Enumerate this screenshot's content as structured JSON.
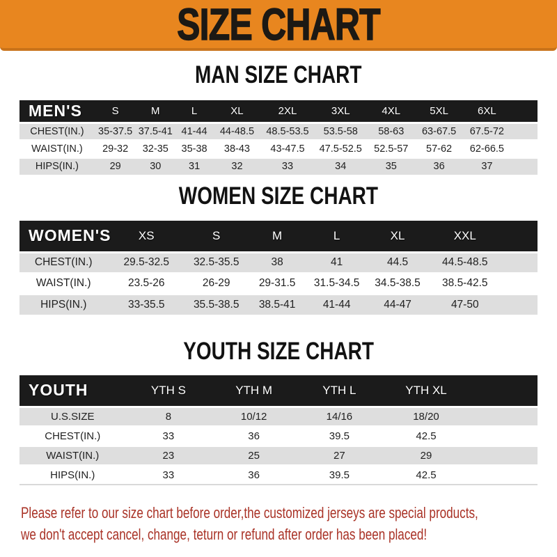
{
  "banner": {
    "title": "SIZE CHART"
  },
  "sections": [
    {
      "heading": "MAN SIZE CHART",
      "table": {
        "header_label": "MEN'S",
        "columns": [
          "S",
          "M",
          "L",
          "XL",
          "2XL",
          "3XL",
          "4XL",
          "5XL",
          "6XL"
        ],
        "rows": [
          {
            "label": "CHEST(IN.)",
            "values": [
              "35-37.5",
              "37.5-41",
              "41-44",
              "44-48.5",
              "48.5-53.5",
              "53.5-58",
              "58-63",
              "63-67.5",
              "67.5-72"
            ]
          },
          {
            "label": "WAIST(IN.)",
            "values": [
              "29-32",
              "32-35",
              "35-38",
              "38-43",
              "43-47.5",
              "47.5-52.5",
              "52.5-57",
              "57-62",
              "62-66.5"
            ]
          },
          {
            "label": "HIPS(IN.)",
            "values": [
              "29",
              "30",
              "31",
              "32",
              "33",
              "34",
              "35",
              "36",
              "37"
            ]
          }
        ]
      }
    },
    {
      "heading": "WOMEN SIZE CHART",
      "table": {
        "header_label": "WOMEN'S",
        "columns": [
          "XS",
          "S",
          "M",
          "L",
          "XL",
          "XXL"
        ],
        "rows": [
          {
            "label": "CHEST(IN.)",
            "values": [
              "29.5-32.5",
              "32.5-35.5",
              "38",
              "41",
              "44.5",
              "44.5-48.5"
            ]
          },
          {
            "label": "WAIST(IN.)",
            "values": [
              "23.5-26",
              "26-29",
              "29-31.5",
              "31.5-34.5",
              "34.5-38.5",
              "38.5-42.5"
            ]
          },
          {
            "label": "HIPS(IN.)",
            "values": [
              "33-35.5",
              "35.5-38.5",
              "38.5-41",
              "41-44",
              "44-47",
              "47-50"
            ]
          }
        ]
      }
    },
    {
      "heading": "YOUTH SIZE CHART",
      "table": {
        "header_label": "YOUTH",
        "columns": [
          "YTH S",
          "YTH M",
          "YTH L",
          "YTH XL"
        ],
        "rows": [
          {
            "label": "U.S.SIZE",
            "values": [
              "8",
              "10/12",
              "14/16",
              "18/20"
            ]
          },
          {
            "label": "CHEST(IN.)",
            "values": [
              "33",
              "36",
              "39.5",
              "42.5"
            ]
          },
          {
            "label": "WAIST(IN.)",
            "values": [
              "23",
              "25",
              "27",
              "29"
            ]
          },
          {
            "label": "HIPS(IN.)",
            "values": [
              "33",
              "36",
              "39.5",
              "42.5"
            ]
          }
        ]
      }
    }
  ],
  "footer": {
    "line1": "Please refer to our size chart before order,the customized jerseys are special products,",
    "line2": "we don't accept cancel, change, teturn or refund after order has been placed!"
  },
  "colors": {
    "banner_bg": "#E8861F",
    "banner_edge": "#C9731A",
    "table_bar": "#1B1B1B",
    "row_shade": "#DEDEDE",
    "notice_text": "#A93226"
  }
}
